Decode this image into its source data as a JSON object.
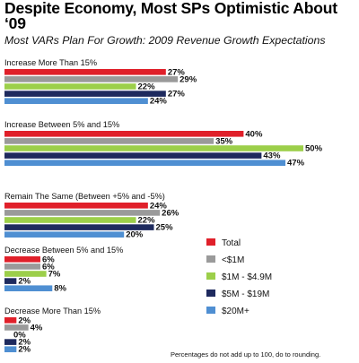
{
  "title": "Despite Economy, Most SPs Optimistic About ‘09",
  "subtitle": "Most VARs Plan For Growth: 2009 Revenue Growth Expectations",
  "footnote": "Percentages do not add up to 100, do to rounding.",
  "chart_data": {
    "type": "bar",
    "orientation": "horizontal",
    "categories": [
      "Increase More Than 15%",
      "Increase Between 5% and 15%",
      "Remain The Same (Between +5% and -5%)",
      "Decrease Between 5% and 15%",
      "Decrease More Than 15%"
    ],
    "series": [
      {
        "name": "Total",
        "color": "#e0202a",
        "values": [
          27,
          40,
          24,
          6,
          2
        ]
      },
      {
        "name": "<$1M",
        "color": "#9a9a9a",
        "values": [
          29,
          35,
          26,
          6,
          4
        ]
      },
      {
        "name": "$1M - $4.9M",
        "color": "#9ccf4a",
        "values": [
          22,
          50,
          22,
          7,
          0
        ]
      },
      {
        "name": "$5M - $19M",
        "color": "#1e2a5e",
        "values": [
          27,
          43,
          25,
          2,
          2
        ]
      },
      {
        "name": "$20M+",
        "color": "#4f8fd2",
        "values": [
          24,
          47,
          20,
          8,
          2
        ]
      }
    ],
    "value_suffix": "%",
    "legend_position": "right",
    "grid": false
  }
}
